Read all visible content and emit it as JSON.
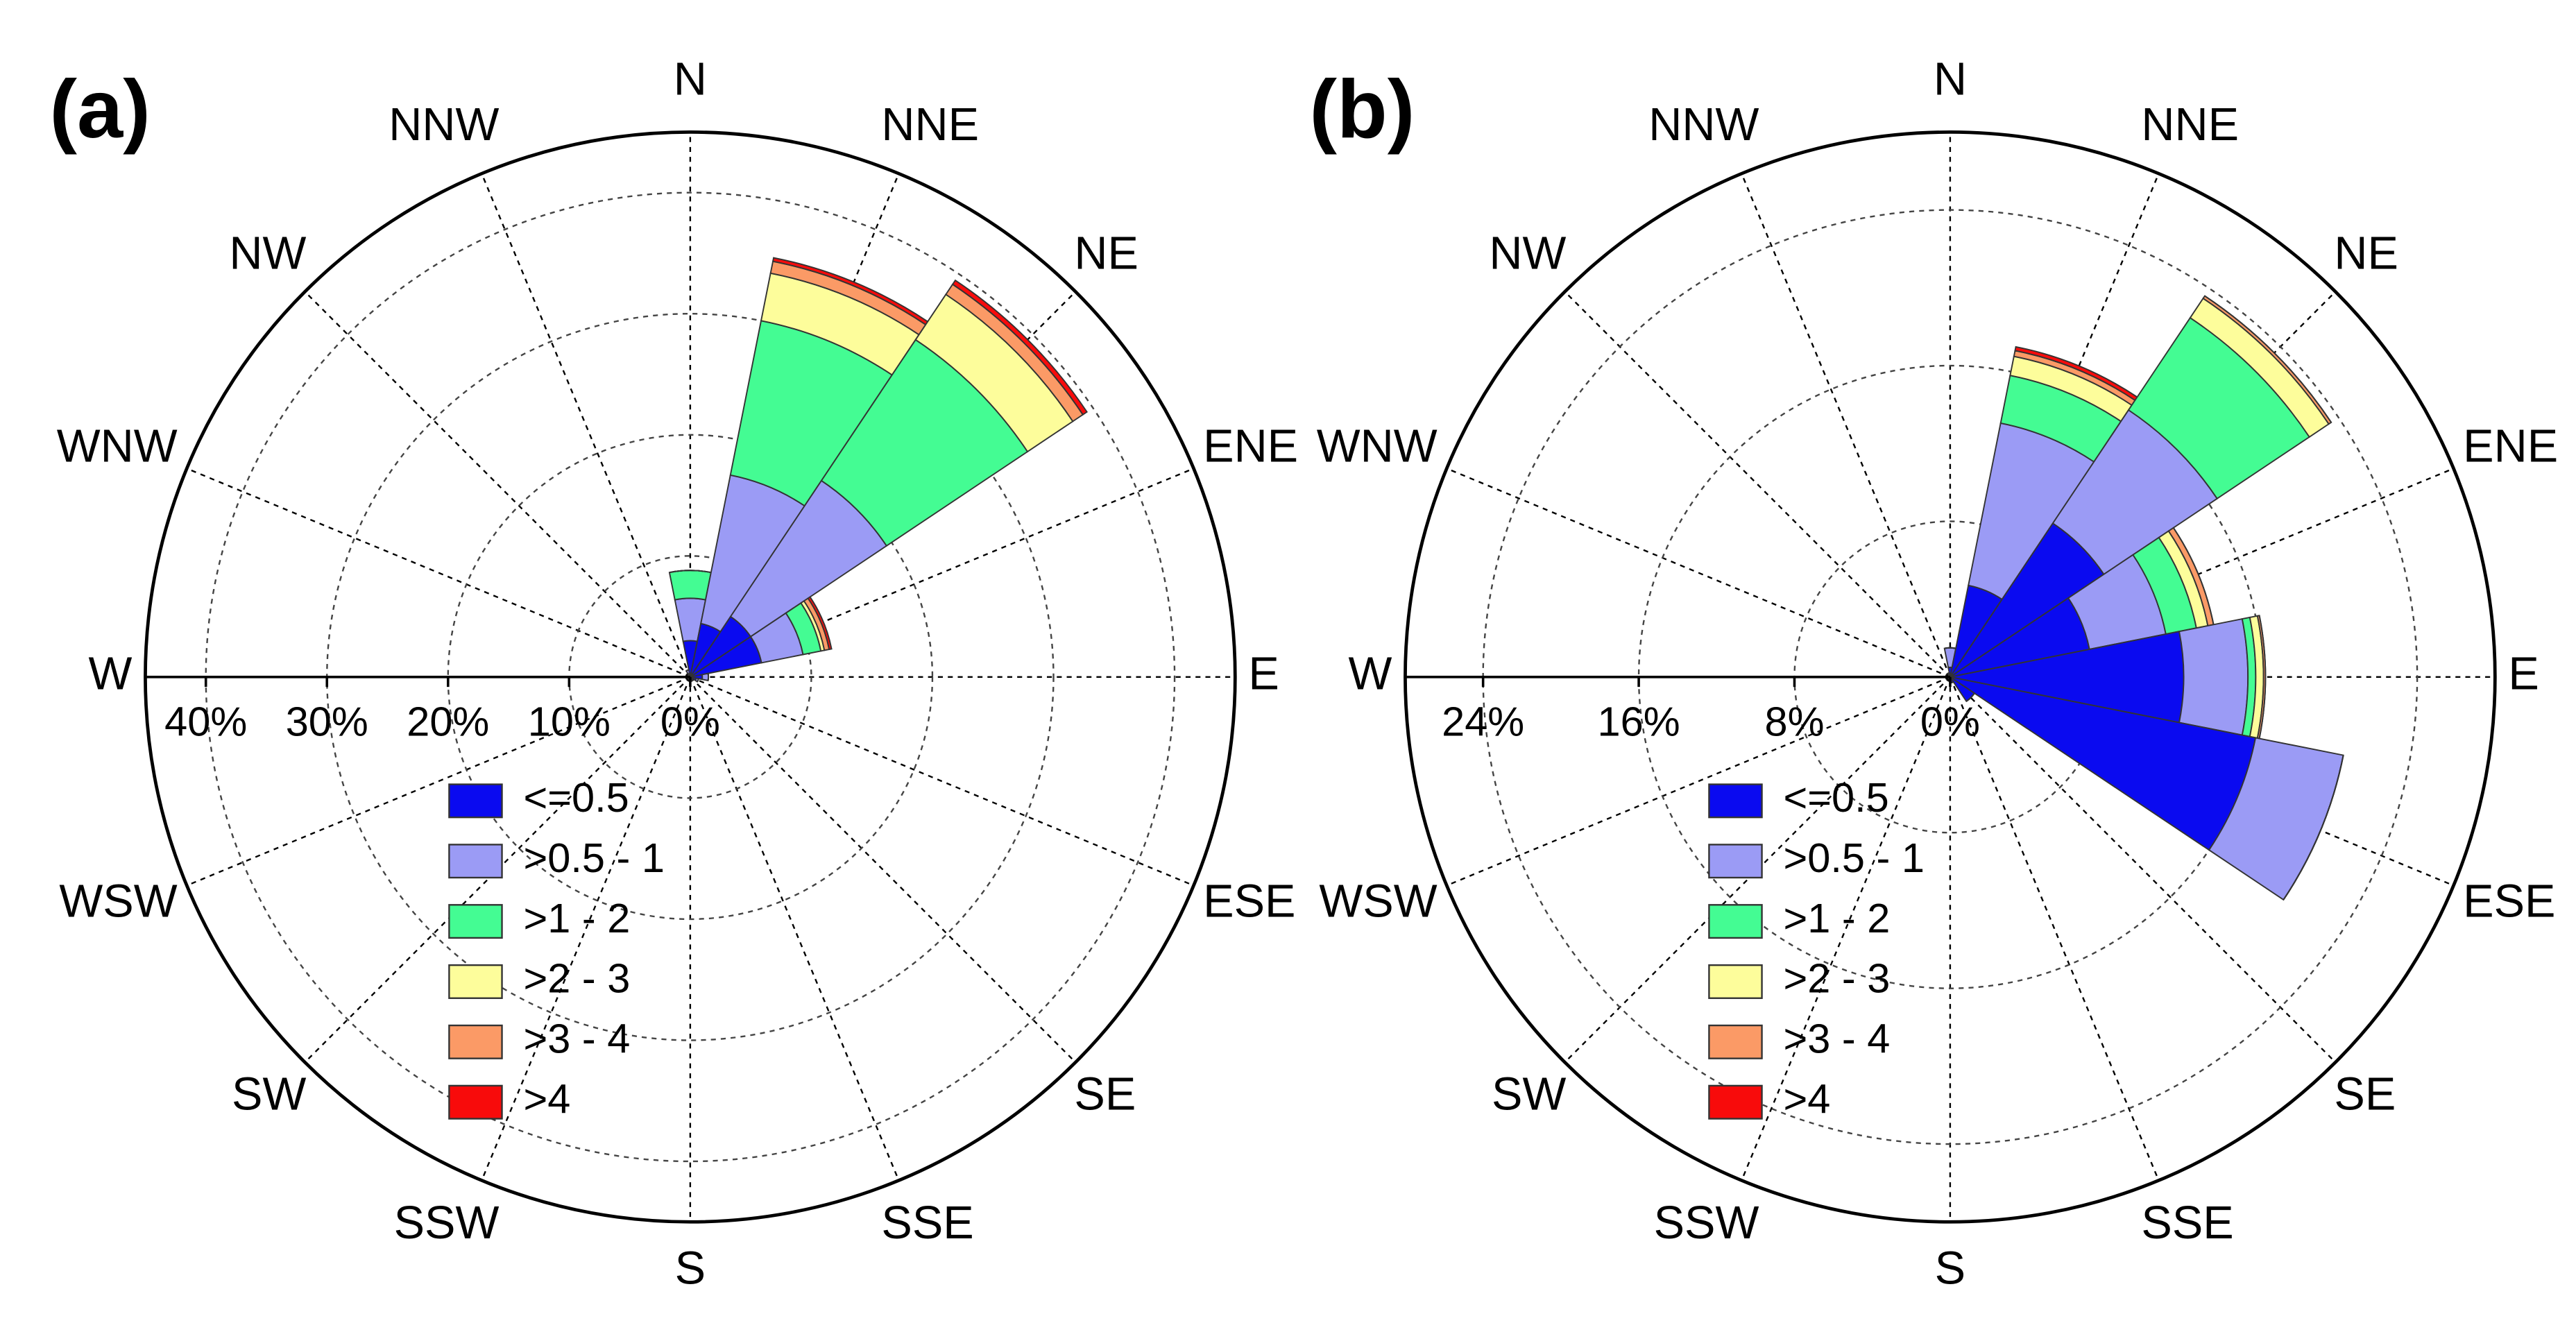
{
  "chart_data": [
    {
      "type": "rose",
      "panel": "(a)",
      "categories": [
        "N",
        "NNE",
        "NE",
        "ENE",
        "E",
        "ESE",
        "SE",
        "SSE",
        "S",
        "SSW",
        "SW",
        "WSW",
        "W",
        "WNW",
        "NW",
        "NNW"
      ],
      "rlim": [
        0,
        45
      ],
      "rticks": [
        {
          "value": 0,
          "label": "0%"
        },
        {
          "value": 10,
          "label": "10%"
        },
        {
          "value": 20,
          "label": "20%"
        },
        {
          "value": 30,
          "label": "30%"
        },
        {
          "value": 40,
          "label": "40%"
        }
      ],
      "series": [
        {
          "name": "<=0.5",
          "color": "#0a0af0",
          "values": [
            3,
            4.5,
            6,
            6,
            1,
            0.5,
            0.3,
            0.3,
            0.2,
            0.2,
            0.2,
            0.2,
            0.2,
            0.2,
            0.2,
            0.3
          ]
        },
        {
          "name": ">0.5 - 1",
          "color": "#9b9bf5",
          "values": [
            3.5,
            12.5,
            13.5,
            3.5,
            0.5,
            0.2,
            0,
            0,
            0,
            0,
            0,
            0,
            0,
            0,
            0,
            0.3
          ]
        },
        {
          "name": ">1 - 2",
          "color": "#44fc93",
          "values": [
            2.3,
            13,
            14,
            1.5,
            0,
            0,
            0,
            0,
            0,
            0,
            0,
            0,
            0,
            0,
            0,
            0
          ]
        },
        {
          "name": ">2 - 3",
          "color": "#fdfd9b",
          "values": [
            0,
            4,
            4.5,
            0.3,
            0,
            0,
            0,
            0,
            0,
            0,
            0,
            0,
            0,
            0,
            0,
            0
          ]
        },
        {
          "name": ">3 - 4",
          "color": "#fb9a66",
          "values": [
            0,
            1,
            1,
            0.4,
            0,
            0,
            0,
            0,
            0,
            0,
            0,
            0,
            0,
            0,
            0,
            0
          ]
        },
        {
          "name": ">4",
          "color": "#f80b0b",
          "values": [
            0,
            0.3,
            0.4,
            0.2,
            0,
            0,
            0,
            0,
            0,
            0,
            0,
            0,
            0,
            0,
            0,
            0
          ]
        }
      ]
    },
    {
      "type": "rose",
      "panel": "(b)",
      "categories": [
        "N",
        "NNE",
        "NE",
        "ENE",
        "E",
        "ESE",
        "SE",
        "SSE",
        "S",
        "SSW",
        "SW",
        "WSW",
        "W",
        "WNW",
        "NW",
        "NNW"
      ],
      "rlim": [
        0,
        28
      ],
      "rticks": [
        {
          "value": 0,
          "label": "0%"
        },
        {
          "value": 8,
          "label": "8%"
        },
        {
          "value": 16,
          "label": "16%"
        },
        {
          "value": 24,
          "label": "24%"
        }
      ],
      "series": [
        {
          "name": "<=0.5",
          "color": "#0a0af0",
          "values": [
            0.5,
            4.8,
            9.5,
            7.3,
            12,
            16,
            1.5,
            0.3,
            0.2,
            0.1,
            0.1,
            0.1,
            0.1,
            0.1,
            0.1,
            0.2
          ]
        },
        {
          "name": ">0.5 - 1",
          "color": "#9b9bf5",
          "values": [
            1,
            8.5,
            7,
            4,
            3.3,
            4.6,
            0,
            0,
            0,
            0,
            0,
            0,
            0,
            0,
            0,
            0
          ]
        },
        {
          "name": ">1 - 2",
          "color": "#44fc93",
          "values": [
            0,
            2.5,
            5.7,
            1.6,
            0.4,
            0,
            0,
            0,
            0,
            0,
            0,
            0,
            0,
            0,
            0,
            0
          ]
        },
        {
          "name": ">2 - 3",
          "color": "#fdfd9b",
          "values": [
            0,
            1,
            1.2,
            0.6,
            0.4,
            0,
            0,
            0,
            0,
            0,
            0,
            0,
            0,
            0,
            0,
            0
          ]
        },
        {
          "name": ">3 - 4",
          "color": "#fb9a66",
          "values": [
            0,
            0.3,
            0.15,
            0.3,
            0.1,
            0,
            0,
            0,
            0,
            0,
            0,
            0,
            0,
            0,
            0,
            0
          ]
        },
        {
          "name": ">4",
          "color": "#f80b0b",
          "values": [
            0,
            0.2,
            0,
            0,
            0,
            0,
            0,
            0,
            0,
            0,
            0,
            0,
            0,
            0,
            0,
            0
          ]
        }
      ]
    }
  ]
}
